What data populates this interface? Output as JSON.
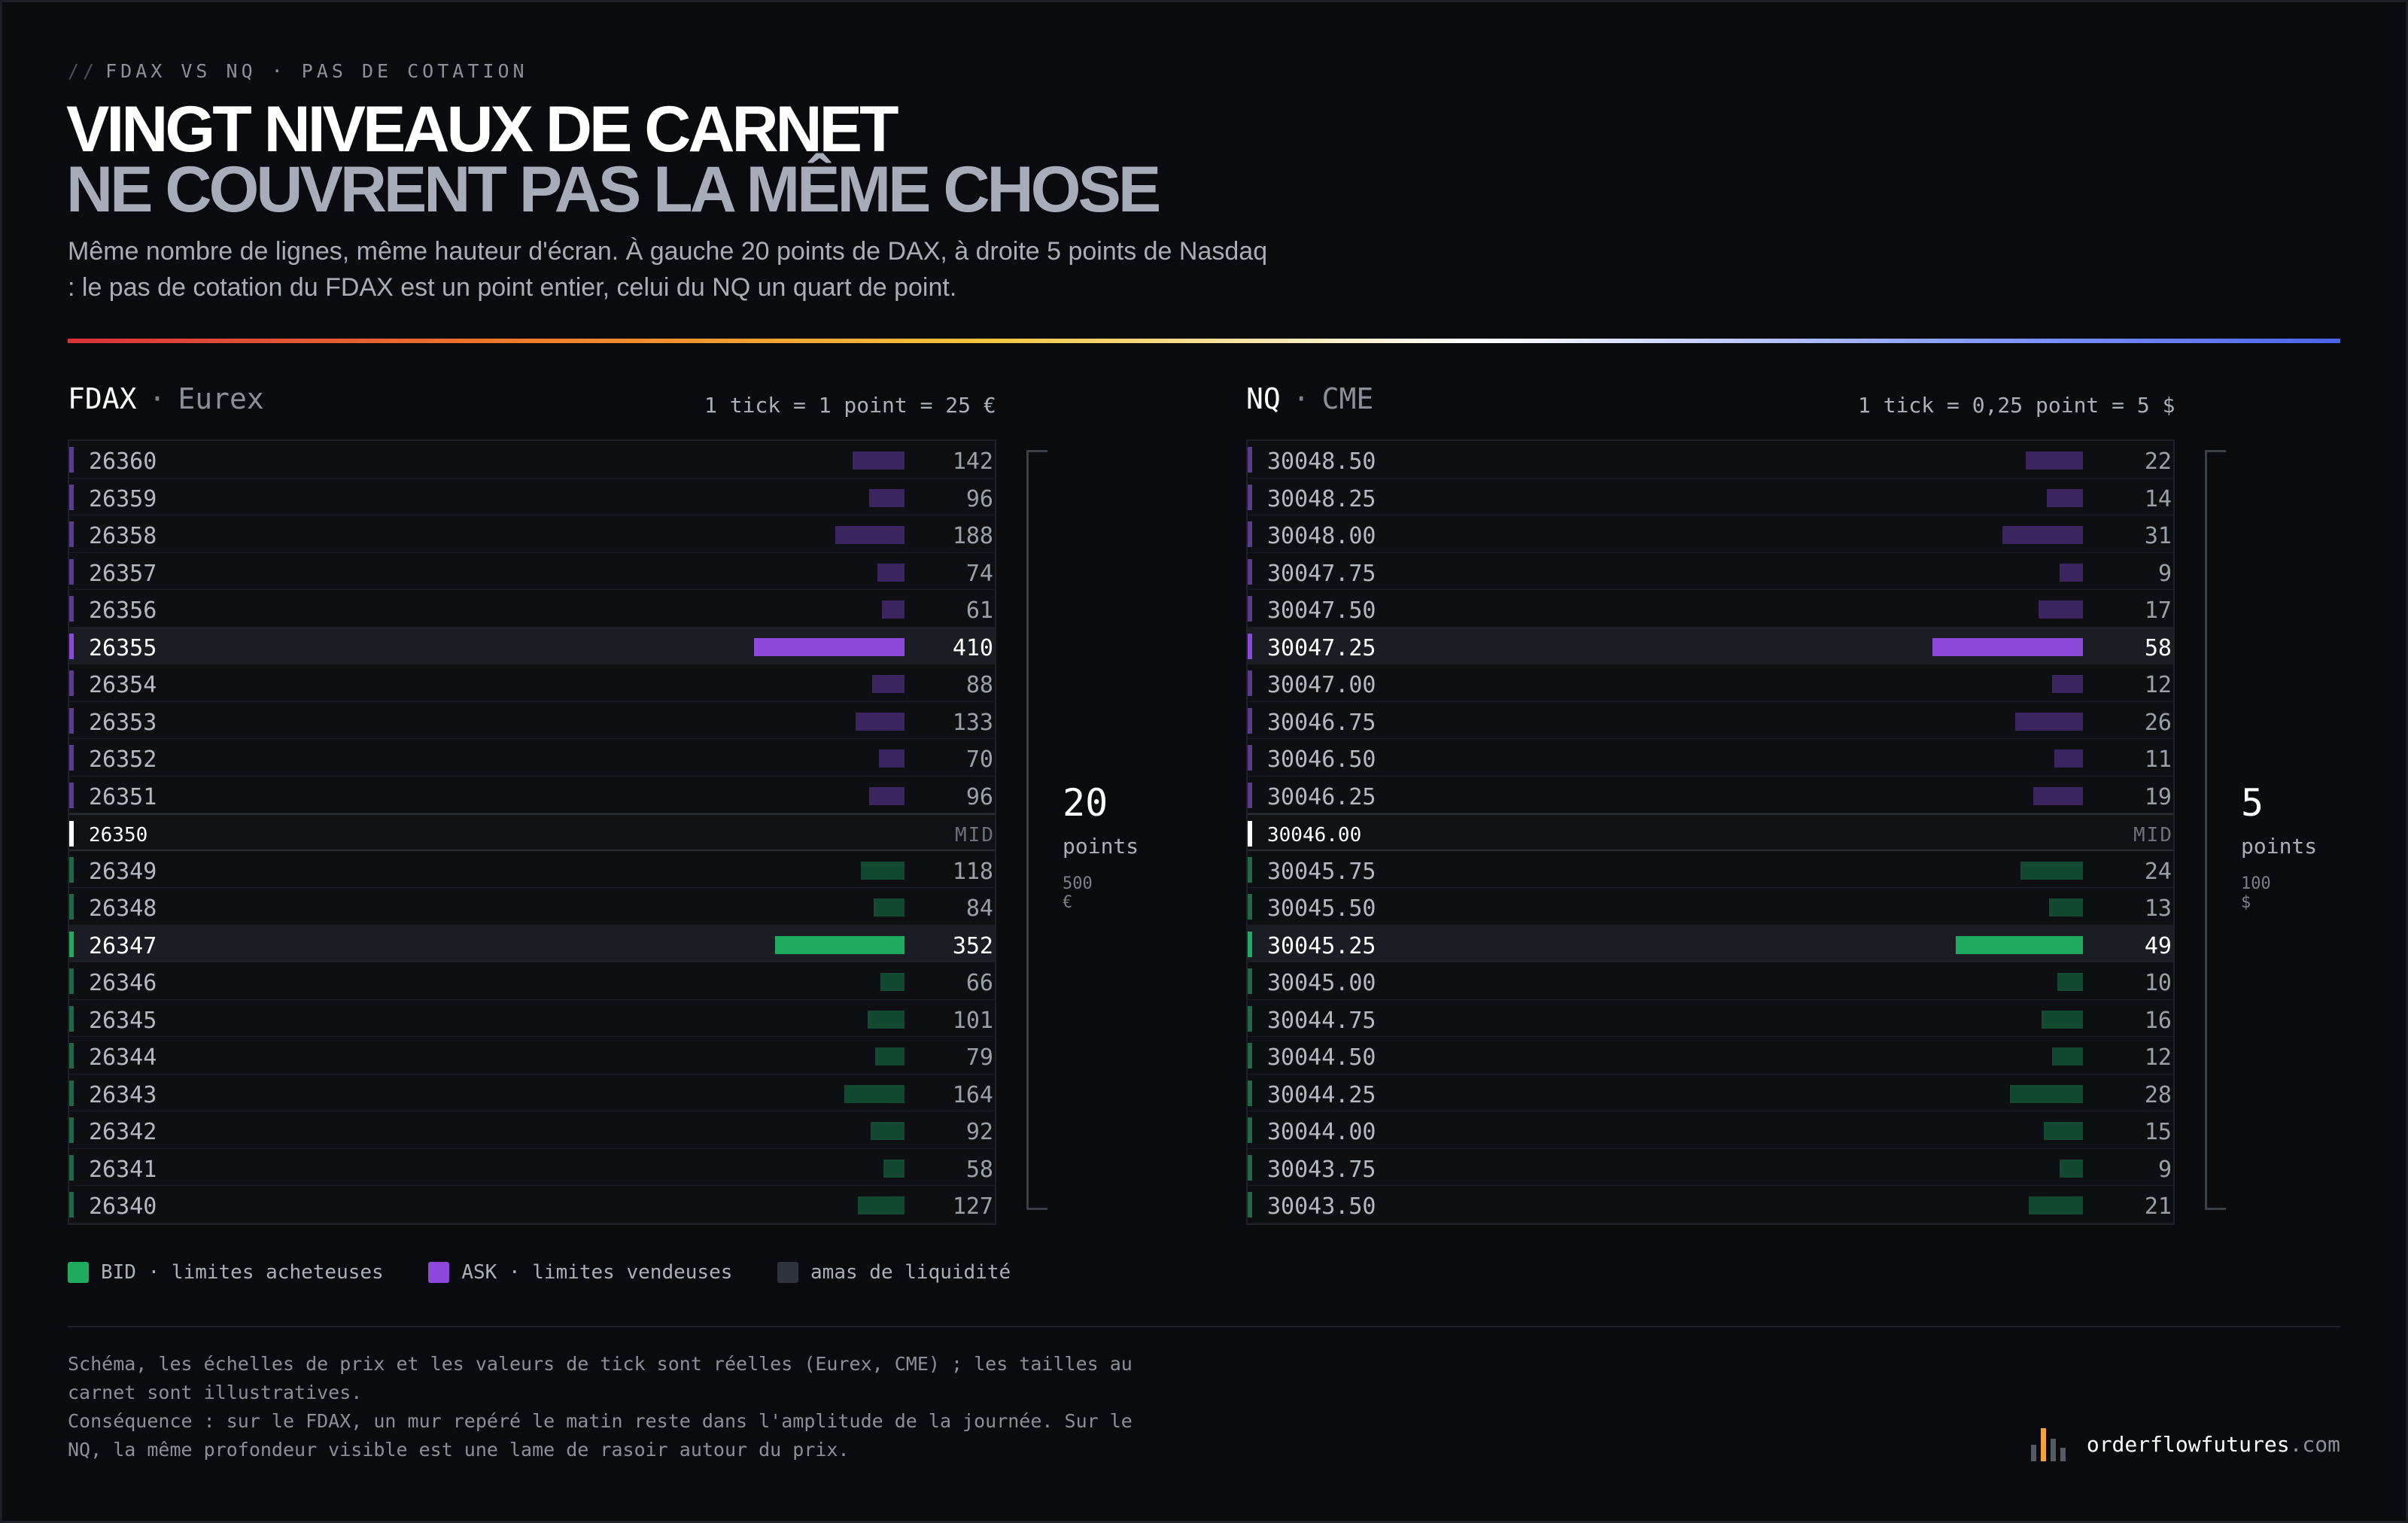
{
  "eyebrow": "FDAX VS NQ · PAS DE COTATION",
  "title": {
    "line1": "VINGT NIVEAUX DE CARNET",
    "line2": "NE COUVRENT PAS LA MÊME CHOSE"
  },
  "subtitle": "Même nombre de lignes, même hauteur d'écran. À gauche 20 points de DAX, à droite 5 points de Nasdaq : le pas de cotation du FDAX est un point entier, celui du NQ un quart de point.",
  "colors": {
    "bid": "#1faa5f",
    "bid_dim": "#114a30",
    "ask": "#8b48d9",
    "ask_dim": "#3a2560",
    "cluster": "#2e323a"
  },
  "chart_data": [
    {
      "type": "bar",
      "symbol": "FDAX",
      "exchange": "Eurex",
      "tick_label": "1 tick = 1 point = 25 €",
      "mid_label": "MID",
      "span": {
        "value": "20",
        "unit": "points",
        "amount": "500 €"
      },
      "max_size": 410,
      "rows": [
        {
          "price": "26360",
          "size": 142,
          "side": "ask"
        },
        {
          "price": "26359",
          "size": 96,
          "side": "ask"
        },
        {
          "price": "26358",
          "size": 188,
          "side": "ask"
        },
        {
          "price": "26357",
          "size": 74,
          "side": "ask"
        },
        {
          "price": "26356",
          "size": 61,
          "side": "ask"
        },
        {
          "price": "26355",
          "size": 410,
          "side": "ask",
          "highlight": true
        },
        {
          "price": "26354",
          "size": 88,
          "side": "ask"
        },
        {
          "price": "26353",
          "size": 133,
          "side": "ask"
        },
        {
          "price": "26352",
          "size": 70,
          "side": "ask"
        },
        {
          "price": "26351",
          "size": 96,
          "side": "ask"
        },
        {
          "price": "26350",
          "side": "mid"
        },
        {
          "price": "26349",
          "size": 118,
          "side": "bid"
        },
        {
          "price": "26348",
          "size": 84,
          "side": "bid"
        },
        {
          "price": "26347",
          "size": 352,
          "side": "bid",
          "highlight": true
        },
        {
          "price": "26346",
          "size": 66,
          "side": "bid"
        },
        {
          "price": "26345",
          "size": 101,
          "side": "bid"
        },
        {
          "price": "26344",
          "size": 79,
          "side": "bid"
        },
        {
          "price": "26343",
          "size": 164,
          "side": "bid"
        },
        {
          "price": "26342",
          "size": 92,
          "side": "bid"
        },
        {
          "price": "26341",
          "size": 58,
          "side": "bid"
        },
        {
          "price": "26340",
          "size": 127,
          "side": "bid"
        }
      ]
    },
    {
      "type": "bar",
      "symbol": "NQ",
      "exchange": "CME",
      "tick_label": "1 tick = 0,25 point = 5 $",
      "mid_label": "MID",
      "span": {
        "value": "5",
        "unit": "points",
        "amount": "100 $"
      },
      "max_size": 58,
      "rows": [
        {
          "price": "30048.50",
          "size": 22,
          "side": "ask"
        },
        {
          "price": "30048.25",
          "size": 14,
          "side": "ask"
        },
        {
          "price": "30048.00",
          "size": 31,
          "side": "ask"
        },
        {
          "price": "30047.75",
          "size": 9,
          "side": "ask"
        },
        {
          "price": "30047.50",
          "size": 17,
          "side": "ask"
        },
        {
          "price": "30047.25",
          "size": 58,
          "side": "ask",
          "highlight": true
        },
        {
          "price": "30047.00",
          "size": 12,
          "side": "ask"
        },
        {
          "price": "30046.75",
          "size": 26,
          "side": "ask"
        },
        {
          "price": "30046.50",
          "size": 11,
          "side": "ask"
        },
        {
          "price": "30046.25",
          "size": 19,
          "side": "ask"
        },
        {
          "price": "30046.00",
          "side": "mid"
        },
        {
          "price": "30045.75",
          "size": 24,
          "side": "bid"
        },
        {
          "price": "30045.50",
          "size": 13,
          "side": "bid"
        },
        {
          "price": "30045.25",
          "size": 49,
          "side": "bid",
          "highlight": true
        },
        {
          "price": "30045.00",
          "size": 10,
          "side": "bid"
        },
        {
          "price": "30044.75",
          "size": 16,
          "side": "bid"
        },
        {
          "price": "30044.50",
          "size": 12,
          "side": "bid"
        },
        {
          "price": "30044.25",
          "size": 28,
          "side": "bid"
        },
        {
          "price": "30044.00",
          "size": 15,
          "side": "bid"
        },
        {
          "price": "30043.75",
          "size": 9,
          "side": "bid"
        },
        {
          "price": "30043.50",
          "size": 21,
          "side": "bid"
        }
      ]
    }
  ],
  "legend": {
    "bid": "BID · limites acheteuses",
    "ask": "ASK · limites vendeuses",
    "cluster": "amas de liquidité"
  },
  "footnote": {
    "line1": "Schéma, les échelles de prix et les valeurs de tick sont réelles (Eurex, CME) ; les tailles au carnet sont illustratives.",
    "line2": "Conséquence : sur le FDAX, un mur repéré le matin reste dans l'amplitude de la journée. Sur le NQ, la même profondeur visible est une lame de rasoir autour du prix."
  },
  "brand": {
    "name": "orderflowfutures",
    "tld": ".com"
  }
}
